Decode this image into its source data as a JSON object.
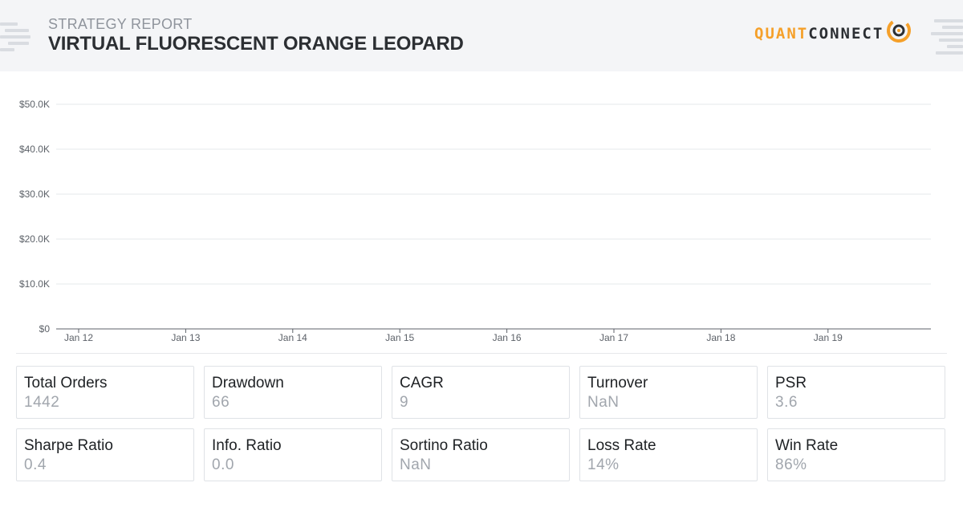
{
  "header": {
    "report_label": "STRATEGY REPORT",
    "title": "VIRTUAL FLUORESCENT ORANGE LEOPARD",
    "logo": {
      "part1": "QUANT",
      "part2": "CONNECT",
      "part1_color": "#f5a02a",
      "part2_color": "#2c2f33"
    }
  },
  "chart_data": {
    "type": "line",
    "title": "",
    "xlabel": "",
    "ylabel": "",
    "x_tick_labels": [
      "Jan 12",
      "Jan 13",
      "Jan 14",
      "Jan 15",
      "Jan 16",
      "Jan 17",
      "Jan 18",
      "Jan 19"
    ],
    "y_tick_labels": [
      "$0",
      "$10.0K",
      "$20.0K",
      "$30.0K",
      "$40.0K",
      "$50.0K"
    ],
    "y_ticks": [
      0,
      10000,
      20000,
      30000,
      40000,
      50000
    ],
    "ylim": [
      0,
      50000
    ],
    "grid": true,
    "series": []
  },
  "stats": [
    {
      "label": "Total Orders",
      "value": "1442"
    },
    {
      "label": "Drawdown",
      "value": "66"
    },
    {
      "label": "CAGR",
      "value": "9"
    },
    {
      "label": "Turnover",
      "value": "NaN"
    },
    {
      "label": "PSR",
      "value": "3.6"
    },
    {
      "label": "Sharpe Ratio",
      "value": "0.4"
    },
    {
      "label": "Info. Ratio",
      "value": "0.0"
    },
    {
      "label": "Sortino Ratio",
      "value": "NaN"
    },
    {
      "label": "Loss Rate",
      "value": "14%"
    },
    {
      "label": "Win Rate",
      "value": "86%"
    }
  ]
}
